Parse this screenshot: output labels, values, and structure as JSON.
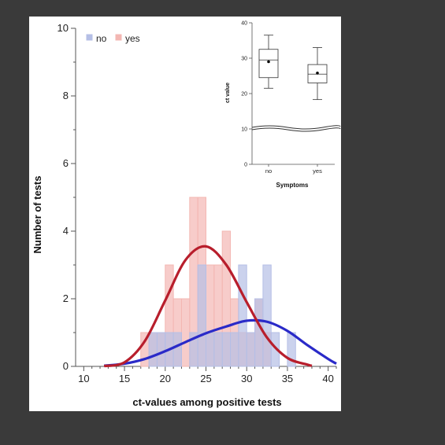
{
  "chart_data": {
    "main": {
      "type": "bar",
      "subtype": "overlaid-histogram-with-density",
      "xlabel": "ct-values among positive tests",
      "ylabel": "Number of tests",
      "xlim": [
        9,
        41
      ],
      "ylim": [
        0,
        10
      ],
      "xticks": [
        10,
        15,
        20,
        25,
        30,
        35,
        40
      ],
      "yticks": [
        0,
        2,
        4,
        6,
        8,
        10
      ],
      "bin_width": 1,
      "legend_position": "top-left",
      "series": [
        {
          "name": "no",
          "color": "#b5bfe6",
          "line_color": "#2a2ac8",
          "bin_starts": [
            18,
            19,
            20,
            21,
            23,
            24,
            25,
            26,
            27,
            28,
            29,
            30,
            31,
            32,
            33,
            35
          ],
          "values": [
            1,
            1,
            1,
            1,
            1,
            3,
            1,
            1,
            1,
            1,
            3,
            1,
            2,
            3,
            1,
            1
          ],
          "density": {
            "x": [
              12.5,
              15,
              17.5,
              20,
              22.5,
              25,
              27.5,
              30,
              32.5,
              35,
              37.5,
              40,
              41
            ],
            "y": [
              0.02,
              0.08,
              0.22,
              0.45,
              0.72,
              0.98,
              1.18,
              1.35,
              1.32,
              1.05,
              0.62,
              0.22,
              0.08
            ]
          }
        },
        {
          "name": "yes",
          "color": "#f3b7b3",
          "line_color": "#b81e2c",
          "bin_starts": [
            17,
            18,
            19,
            20,
            21,
            22,
            23,
            24,
            25,
            26,
            27,
            28,
            29,
            30,
            31,
            32
          ],
          "values": [
            1,
            1,
            1,
            3,
            2,
            2,
            5,
            5,
            3,
            3,
            4,
            2,
            1,
            1,
            2,
            1
          ],
          "density": {
            "x": [
              12.5,
              15,
              17.5,
              20,
              22.5,
              25,
              27.5,
              30,
              32.5,
              35,
              37.5,
              38
            ],
            "y": [
              0.01,
              0.12,
              0.75,
              1.95,
              3.15,
              3.55,
              3.0,
              1.9,
              0.85,
              0.25,
              0.05,
              0.02
            ]
          }
        }
      ]
    },
    "inset": {
      "type": "boxplot",
      "xlabel": "Symptoms",
      "ylabel": "ct value",
      "categories": [
        "no",
        "yes"
      ],
      "y_ticks": [
        0,
        10,
        20,
        30,
        40
      ],
      "axis_break": true,
      "boxes": [
        {
          "category": "no",
          "whisker_low": 21.5,
          "q1": 24.5,
          "median": 29.5,
          "q3": 32.5,
          "whisker_high": 36.5,
          "mean": 29.0
        },
        {
          "category": "yes",
          "whisker_low": 18.3,
          "q1": 23.0,
          "median": 25.5,
          "q3": 28.2,
          "whisker_high": 33.0,
          "mean": 25.8
        }
      ]
    }
  }
}
